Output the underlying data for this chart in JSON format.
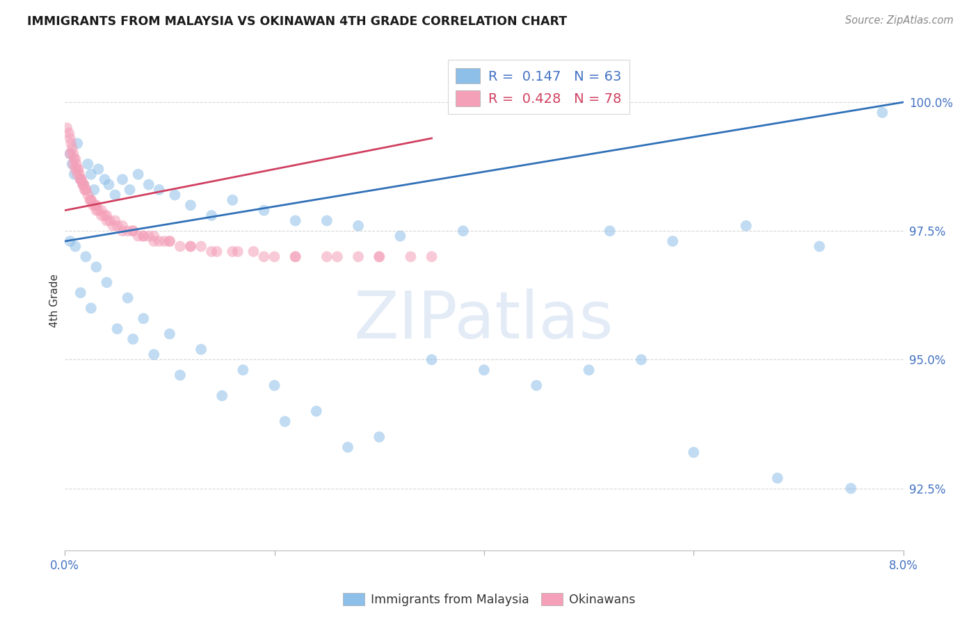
{
  "title": "IMMIGRANTS FROM MALAYSIA VS OKINAWAN 4TH GRADE CORRELATION CHART",
  "source": "Source: ZipAtlas.com",
  "ylabel": "4th Grade",
  "x_min": 0.0,
  "x_max": 8.0,
  "y_min": 91.3,
  "y_max": 101.0,
  "y_ticks": [
    92.5,
    95.0,
    97.5,
    100.0
  ],
  "y_tick_labels": [
    "92.5%",
    "95.0%",
    "97.5%",
    "100.0%"
  ],
  "x_ticks": [
    0.0,
    2.0,
    4.0,
    6.0,
    8.0
  ],
  "x_tick_labels": [
    "0.0%",
    "",
    "",
    "",
    "8.0%"
  ],
  "blue_color": "#8dbfe8",
  "pink_color": "#f4a0b8",
  "blue_line_color": "#3070b8",
  "pink_line_color": "#d04060",
  "watermark_text": "ZIPatlas",
  "watermark_color": "#ddeeff",
  "blue_r": "R =  0.147",
  "blue_n": "N = 63",
  "pink_r": "R =  0.428",
  "pink_n": "N = 78",
  "blue_dot_x": [
    0.05,
    0.07,
    0.09,
    0.12,
    0.15,
    0.18,
    0.22,
    0.25,
    0.28,
    0.32,
    0.38,
    0.42,
    0.48,
    0.55,
    0.62,
    0.7,
    0.8,
    0.9,
    1.05,
    1.2,
    1.4,
    1.6,
    1.9,
    2.2,
    2.5,
    2.8,
    3.2,
    3.8,
    5.2,
    5.8,
    6.5,
    7.2,
    7.8,
    0.1,
    0.2,
    0.3,
    0.4,
    0.6,
    0.75,
    1.0,
    1.3,
    1.7,
    2.0,
    2.4,
    3.0,
    3.5,
    4.0,
    4.5,
    5.0,
    5.5,
    6.0,
    6.8,
    7.5,
    0.05,
    0.15,
    0.25,
    0.5,
    0.65,
    0.85,
    1.1,
    1.5,
    2.1,
    2.7
  ],
  "blue_dot_y": [
    99.0,
    98.8,
    98.6,
    99.2,
    98.5,
    98.4,
    98.8,
    98.6,
    98.3,
    98.7,
    98.5,
    98.4,
    98.2,
    98.5,
    98.3,
    98.6,
    98.4,
    98.3,
    98.2,
    98.0,
    97.8,
    98.1,
    97.9,
    97.7,
    97.7,
    97.6,
    97.4,
    97.5,
    97.5,
    97.3,
    97.6,
    97.2,
    99.8,
    97.2,
    97.0,
    96.8,
    96.5,
    96.2,
    95.8,
    95.5,
    95.2,
    94.8,
    94.5,
    94.0,
    93.5,
    95.0,
    94.8,
    94.5,
    94.8,
    95.0,
    93.2,
    92.7,
    92.5,
    97.3,
    96.3,
    96.0,
    95.6,
    95.4,
    95.1,
    94.7,
    94.3,
    93.8,
    93.3
  ],
  "pink_dot_x": [
    0.02,
    0.04,
    0.05,
    0.06,
    0.07,
    0.08,
    0.09,
    0.1,
    0.11,
    0.12,
    0.13,
    0.14,
    0.15,
    0.16,
    0.17,
    0.18,
    0.19,
    0.2,
    0.22,
    0.24,
    0.25,
    0.27,
    0.29,
    0.3,
    0.32,
    0.35,
    0.38,
    0.4,
    0.43,
    0.46,
    0.5,
    0.55,
    0.6,
    0.65,
    0.7,
    0.75,
    0.8,
    0.85,
    0.9,
    0.95,
    1.0,
    1.1,
    1.2,
    1.3,
    1.45,
    1.6,
    1.8,
    2.0,
    2.2,
    2.5,
    2.8,
    3.0,
    3.3,
    0.05,
    0.08,
    0.1,
    0.12,
    0.15,
    0.18,
    0.2,
    0.25,
    0.3,
    0.35,
    0.4,
    0.48,
    0.55,
    0.65,
    0.75,
    0.85,
    1.0,
    1.2,
    1.4,
    1.65,
    1.9,
    2.2,
    2.6,
    3.0,
    3.5
  ],
  "pink_dot_y": [
    99.5,
    99.4,
    99.3,
    99.2,
    99.1,
    99.0,
    98.9,
    98.9,
    98.8,
    98.7,
    98.7,
    98.6,
    98.5,
    98.5,
    98.4,
    98.4,
    98.3,
    98.3,
    98.2,
    98.1,
    98.1,
    98.0,
    98.0,
    97.9,
    97.9,
    97.8,
    97.8,
    97.7,
    97.7,
    97.6,
    97.6,
    97.5,
    97.5,
    97.5,
    97.4,
    97.4,
    97.4,
    97.3,
    97.3,
    97.3,
    97.3,
    97.2,
    97.2,
    97.2,
    97.1,
    97.1,
    97.1,
    97.0,
    97.0,
    97.0,
    97.0,
    97.0,
    97.0,
    99.0,
    98.8,
    98.7,
    98.6,
    98.5,
    98.4,
    98.3,
    98.1,
    98.0,
    97.9,
    97.8,
    97.7,
    97.6,
    97.5,
    97.4,
    97.4,
    97.3,
    97.2,
    97.1,
    97.1,
    97.0,
    97.0,
    97.0,
    97.0,
    97.0
  ],
  "blue_line_x0": 0.0,
  "blue_line_x1": 8.0,
  "blue_line_y0": 97.3,
  "blue_line_y1": 100.0,
  "pink_line_x0": 0.0,
  "pink_line_x1": 3.5,
  "pink_line_y0": 97.9,
  "pink_line_y1": 99.3
}
